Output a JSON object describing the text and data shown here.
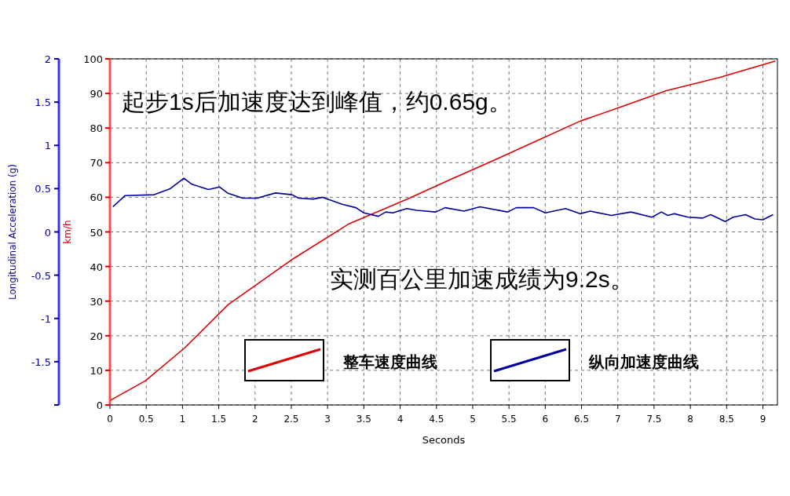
{
  "chart_data": {
    "type": "line",
    "xlabel": "Seconds",
    "ylabel": "km/h",
    "y2label": "Longitudinal Acceleration (g)",
    "annotations": [
      "起步1s后加速度达到峰值，约0.65g。",
      "实测百公里加速成绩为9.2s。"
    ],
    "xlim": [
      0,
      9.2
    ],
    "xticks": [
      0,
      0.5,
      1,
      1.5,
      2,
      2.5,
      3,
      3.5,
      4,
      4.5,
      5,
      5.5,
      6,
      6.5,
      7,
      7.5,
      8,
      8.5,
      9
    ],
    "ylim": [
      0,
      100
    ],
    "yticks": [
      0,
      10,
      20,
      30,
      40,
      50,
      60,
      70,
      80,
      90,
      100
    ],
    "y2lim": [
      -2,
      2
    ],
    "y2ticks": [
      {
        "value": -2,
        "label": null
      },
      -1.5,
      -1,
      -0.5,
      0,
      0.5,
      1,
      1.5,
      2
    ],
    "grid": true,
    "legend": "bottom",
    "series": [
      {
        "name": "整车速度曲线",
        "color": "#e00000",
        "x": [
          0.01,
          0.49,
          1.03,
          1.63,
          2.53,
          3.3,
          4.09,
          4.68,
          5.28,
          5.88,
          6.48,
          7.08,
          7.67,
          8.4,
          9.17
        ],
        "values": [
          1.4,
          7,
          16.5,
          29,
          42.3,
          52.4,
          59.4,
          65,
          70.6,
          76.3,
          82,
          86.4,
          90.8,
          94.6,
          99.4
        ]
      },
      {
        "name": "纵向加速度曲线",
        "color": "#0000a0",
        "axis": "y2",
        "x": [
          0.04,
          0.21,
          0.61,
          0.83,
          1.02,
          1.13,
          1.36,
          1.51,
          1.62,
          1.83,
          2.03,
          2.28,
          2.51,
          2.6,
          2.8,
          2.93,
          3.2,
          3.39,
          3.5,
          3.7,
          3.8,
          3.9,
          4.09,
          4.23,
          4.49,
          4.62,
          4.88,
          5.1,
          5.48,
          5.6,
          5.84,
          6.0,
          6.28,
          6.48,
          6.62,
          6.91,
          7.18,
          7.47,
          7.6,
          7.69,
          7.78,
          7.97,
          8.17,
          8.28,
          8.48,
          8.59,
          8.76,
          8.89,
          9.0,
          9.14
        ],
        "values": [
          0.29,
          0.42,
          0.43,
          0.5,
          0.62,
          0.55,
          0.49,
          0.52,
          0.45,
          0.39,
          0.39,
          0.45,
          0.43,
          0.39,
          0.38,
          0.4,
          0.32,
          0.28,
          0.22,
          0.18,
          0.23,
          0.22,
          0.27,
          0.25,
          0.23,
          0.28,
          0.24,
          0.29,
          0.23,
          0.28,
          0.28,
          0.22,
          0.27,
          0.21,
          0.24,
          0.19,
          0.23,
          0.17,
          0.23,
          0.19,
          0.21,
          0.17,
          0.16,
          0.2,
          0.12,
          0.17,
          0.2,
          0.15,
          0.14,
          0.2
        ]
      }
    ]
  }
}
